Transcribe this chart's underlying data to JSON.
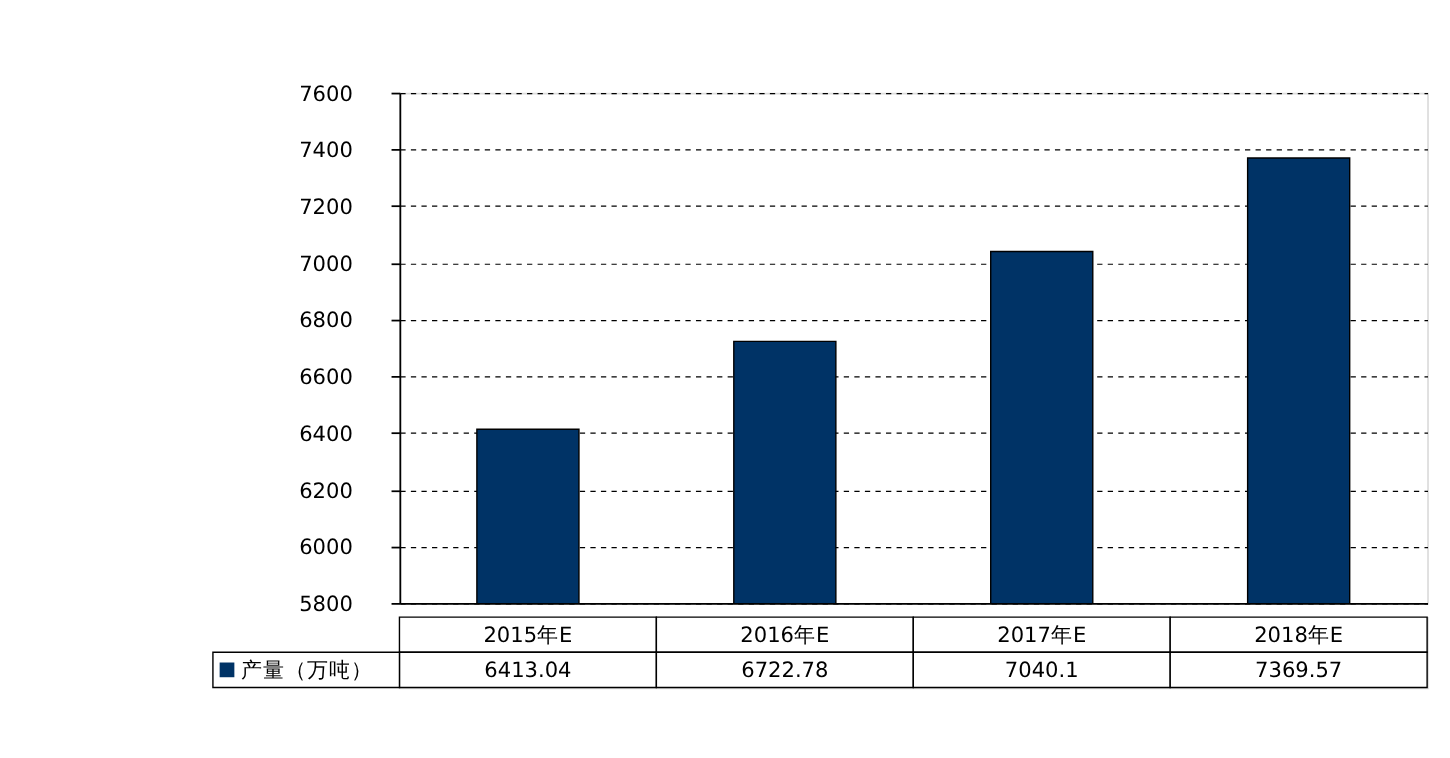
{
  "chart_data": {
    "type": "bar",
    "categories": [
      "2015年E",
      "2016年E",
      "2017年E",
      "2018年E"
    ],
    "series": [
      {
        "name": "产量（万吨）",
        "color": "#003366",
        "values": [
          6413.04,
          6722.78,
          7040.1,
          7369.57
        ]
      }
    ],
    "ylim": [
      5800,
      7600
    ],
    "yticks": [
      5800,
      6000,
      6200,
      6400,
      6600,
      6800,
      7000,
      7200,
      7400,
      7600
    ],
    "grid": "y",
    "legend": "bottom",
    "data_labels": true
  }
}
